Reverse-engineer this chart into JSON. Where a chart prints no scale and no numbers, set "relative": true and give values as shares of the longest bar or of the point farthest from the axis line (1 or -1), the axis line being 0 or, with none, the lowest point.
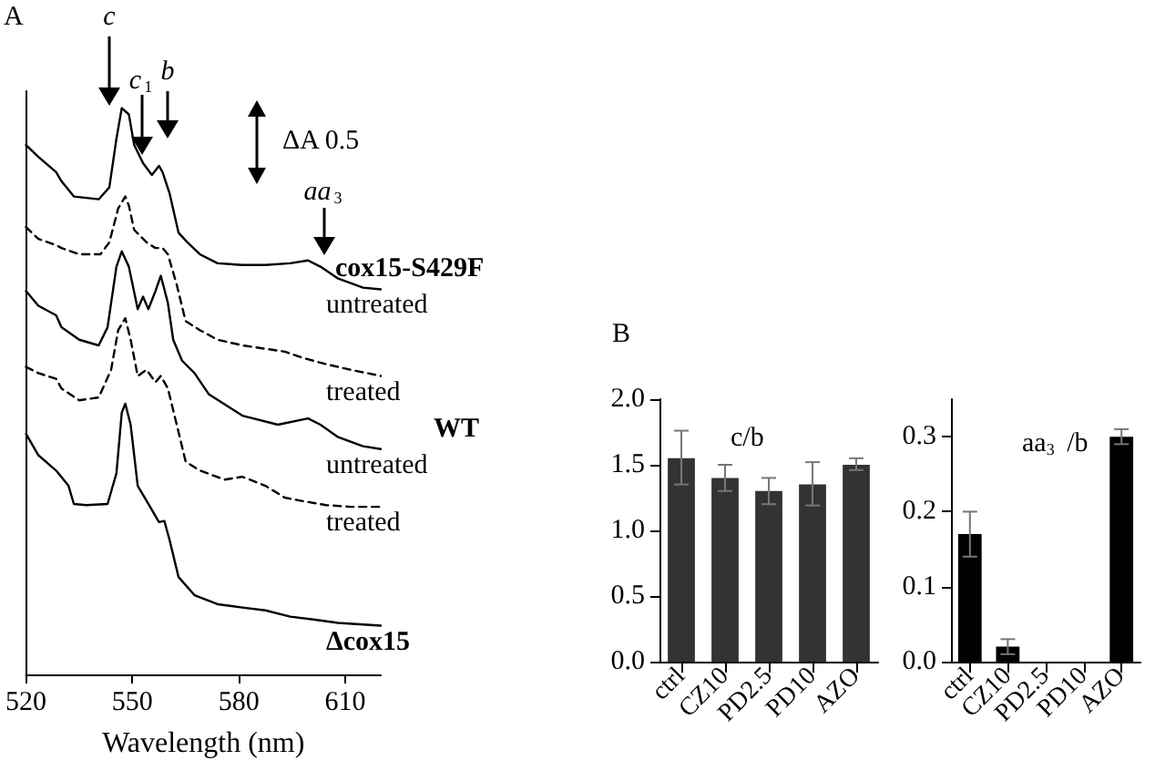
{
  "chart_data": [
    {
      "type": "line",
      "relative": true,
      "xlabel": "Wavelength (nm)",
      "xlim": [
        520,
        620
      ],
      "xticks": [
        520,
        550,
        580,
        610
      ],
      "grid": false,
      "legend": false,
      "marker": "none",
      "annotations": [
        "A",
        "c",
        "c$_{1}$",
        "b",
        "ΔA 0.5",
        "aa$_{3}$",
        "cox15-S429F",
        "WT"
      ],
      "series": [
        {
          "name": "untreated",
          "color": "#000000",
          "line_style": "solid",
          "x": [
            520,
            523.5,
            528.5,
            530,
            533.5,
            540.5,
            543.5,
            545.5,
            547,
            549,
            550.5,
            553,
            555.5,
            557.5,
            558.5,
            560.5,
            563,
            565.5,
            569,
            574,
            581,
            587.5,
            594.5,
            599.5,
            603,
            608,
            615,
            620
          ],
          "values": [
            0.935,
            0.914,
            0.887,
            0.871,
            0.844,
            0.839,
            0.86,
            0.946,
            1.0,
            0.989,
            0.935,
            0.903,
            0.882,
            0.898,
            0.887,
            0.849,
            0.78,
            0.763,
            0.742,
            0.726,
            0.723,
            0.723,
            0.726,
            0.731,
            0.72,
            0.699,
            0.683,
            0.68
          ]
        },
        {
          "name": "treated",
          "color": "#000000",
          "line_style": "dashed",
          "x": [
            520,
            523.5,
            528.5,
            530,
            535,
            541,
            543.5,
            546,
            548,
            549,
            550.5,
            554,
            556.5,
            558.5,
            560,
            562.5,
            565,
            569,
            574,
            581,
            587.5,
            593,
            598,
            604.5,
            611.5,
            620
          ],
          "values": [
            0.79,
            0.769,
            0.758,
            0.753,
            0.742,
            0.742,
            0.763,
            0.823,
            0.844,
            0.828,
            0.785,
            0.763,
            0.753,
            0.753,
            0.742,
            0.688,
            0.624,
            0.608,
            0.591,
            0.581,
            0.575,
            0.57,
            0.559,
            0.548,
            0.538,
            0.527
          ]
        },
        {
          "name": "untreated",
          "color": "#000000",
          "line_style": "solid",
          "x": [
            520,
            523.5,
            528.5,
            530,
            535,
            540.5,
            543,
            545.5,
            547,
            549,
            551.5,
            553,
            554.5,
            556.5,
            558,
            560,
            561.5,
            564,
            567.5,
            571.5,
            581,
            591,
            599.5,
            603,
            608,
            615,
            620
          ],
          "values": [
            0.677,
            0.651,
            0.634,
            0.613,
            0.591,
            0.581,
            0.613,
            0.72,
            0.747,
            0.72,
            0.645,
            0.667,
            0.645,
            0.677,
            0.704,
            0.656,
            0.591,
            0.554,
            0.532,
            0.495,
            0.457,
            0.441,
            0.452,
            0.441,
            0.419,
            0.403,
            0.398
          ]
        },
        {
          "name": "treated",
          "color": "#000000",
          "line_style": "dashed",
          "x": [
            520,
            523.5,
            528.5,
            530,
            535,
            540.5,
            544,
            546,
            548,
            549.5,
            551.5,
            554,
            556.5,
            558,
            560,
            562.5,
            565,
            569,
            576,
            581,
            587.5,
            593,
            598,
            604.5,
            611.5,
            620
          ],
          "values": [
            0.543,
            0.532,
            0.522,
            0.505,
            0.484,
            0.489,
            0.538,
            0.608,
            0.629,
            0.591,
            0.527,
            0.538,
            0.516,
            0.527,
            0.505,
            0.441,
            0.376,
            0.36,
            0.344,
            0.349,
            0.333,
            0.312,
            0.306,
            0.299,
            0.296,
            0.296
          ]
        },
        {
          "name": "Δcox15",
          "color": "#000000",
          "line_style": "solid",
          "x": [
            520,
            523.5,
            528.5,
            532,
            533.5,
            537,
            543,
            545.5,
            547,
            548,
            549.5,
            551.5,
            554.5,
            557.5,
            559,
            560.5,
            563,
            567.5,
            574,
            581,
            587.5,
            594.5,
            601,
            608,
            615,
            620
          ],
          "values": [
            0.425,
            0.387,
            0.36,
            0.333,
            0.301,
            0.299,
            0.301,
            0.355,
            0.462,
            0.478,
            0.441,
            0.333,
            0.301,
            0.269,
            0.271,
            0.237,
            0.172,
            0.14,
            0.124,
            0.118,
            0.113,
            0.102,
            0.097,
            0.091,
            0.088,
            0.086
          ]
        }
      ]
    },
    {
      "type": "bar",
      "title": "c/b",
      "annotations": [
        "B"
      ],
      "categories": [
        "ctrl",
        "CZ10",
        "PD2.5",
        "PD10",
        "AZO"
      ],
      "values": [
        1.55,
        1.4,
        1.3,
        1.35,
        1.5
      ],
      "errors": [
        [
          1.35,
          1.76
        ],
        [
          1.3,
          1.5
        ],
        [
          1.2,
          1.4
        ],
        [
          1.19,
          1.52
        ],
        [
          1.46,
          1.55
        ]
      ],
      "color": "#333333",
      "ylim": [
        0,
        2
      ],
      "yticks": [
        {
          "value": 0,
          "label": "0.0"
        },
        0.5,
        {
          "value": 1,
          "label": "1.0"
        },
        1.5,
        {
          "value": 2,
          "label": "2.0"
        }
      ],
      "grid": false,
      "legend": false
    },
    {
      "type": "bar",
      "title": "aa$_{3}$ /b",
      "categories": [
        "ctrl",
        "CZ10",
        "PD2.5",
        "PD10",
        "AZO"
      ],
      "values": [
        0.17,
        0.02,
        0,
        0,
        0.3
      ],
      "errors": [
        [
          0.14,
          0.2
        ],
        [
          0.01,
          0.03
        ],
        null,
        null,
        [
          0.29,
          0.31
        ]
      ],
      "color": "#000000",
      "ylim": [
        0,
        0.35
      ],
      "yticks": [
        {
          "value": 0,
          "label": "0.0"
        },
        0.1,
        0.2,
        0.3
      ],
      "grid": false,
      "legend": false
    }
  ]
}
